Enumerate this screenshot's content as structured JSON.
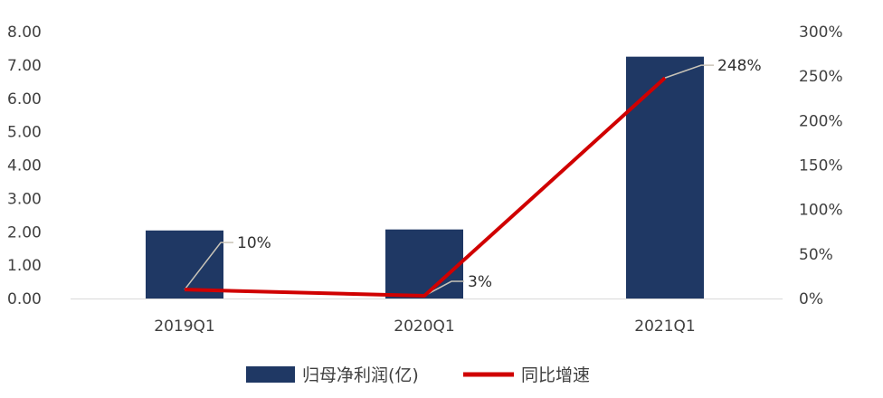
{
  "chart_data": {
    "type": "bar",
    "categories": [
      "2019Q1",
      "2020Q1",
      "2021Q1"
    ],
    "series": [
      {
        "name": "归母净利润(亿)",
        "type": "bar",
        "axis": "left",
        "color": "#1F3864",
        "values": [
          2.04,
          2.07,
          7.25
        ]
      },
      {
        "name": "同比增速",
        "type": "line",
        "axis": "right",
        "color": "#D00000",
        "values": [
          10,
          3,
          248
        ],
        "labels": [
          "10%",
          "3%",
          "248%"
        ]
      }
    ],
    "y_left": {
      "ylim": [
        0,
        8
      ],
      "ticks": [
        "0.00",
        "1.00",
        "2.00",
        "3.00",
        "4.00",
        "5.00",
        "6.00",
        "7.00",
        "8.00"
      ]
    },
    "y_right": {
      "ylim": [
        0,
        300
      ],
      "ticks": [
        "0%",
        "50%",
        "100%",
        "150%",
        "200%",
        "250%",
        "300%"
      ]
    },
    "grid": false,
    "legend_position": "bottom"
  }
}
